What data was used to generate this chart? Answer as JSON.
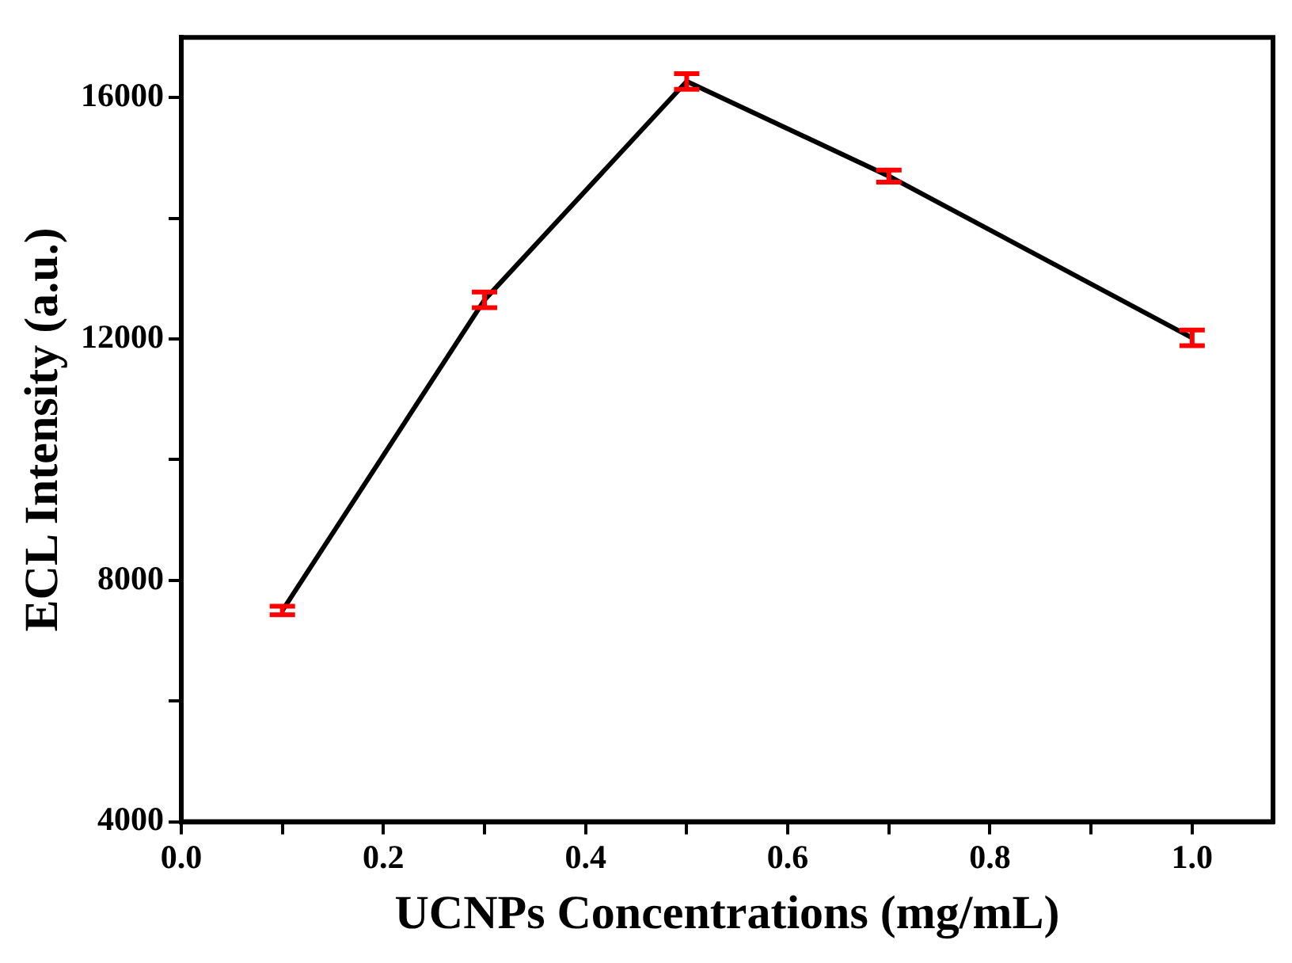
{
  "chart_data": {
    "type": "line",
    "xlabel": "UCNPs Concentrations (mg/mL)",
    "ylabel": "ECL Intensity (a.u.)",
    "x": [
      0.1,
      0.3,
      0.5,
      0.7,
      1.0
    ],
    "series": [
      {
        "color": "#000000",
        "values": [
          7500,
          12650,
          16270,
          14700,
          12020
        ],
        "errors": [
          70,
          130,
          130,
          100,
          130
        ]
      }
    ],
    "xlim": [
      0,
      1.08
    ],
    "xticks": [
      {
        "value": 0,
        "label": "0.0"
      },
      {
        "value": 0.1,
        "label": null
      },
      0.2,
      {
        "value": 0.3,
        "label": null
      },
      0.4,
      {
        "value": 0.5,
        "label": null
      },
      0.6,
      {
        "value": 0.7,
        "label": null
      },
      0.8,
      {
        "value": 0.9,
        "label": null
      },
      {
        "value": 1,
        "label": "1.0"
      }
    ],
    "ylim": [
      4000,
      17000
    ],
    "yticks": [
      4000,
      {
        "value": 6000,
        "label": null
      },
      8000,
      {
        "value": 10000,
        "label": null
      },
      12000,
      {
        "value": 14000,
        "label": null
      },
      16000
    ],
    "grid": false,
    "legend": false,
    "line_style": "solid"
  }
}
